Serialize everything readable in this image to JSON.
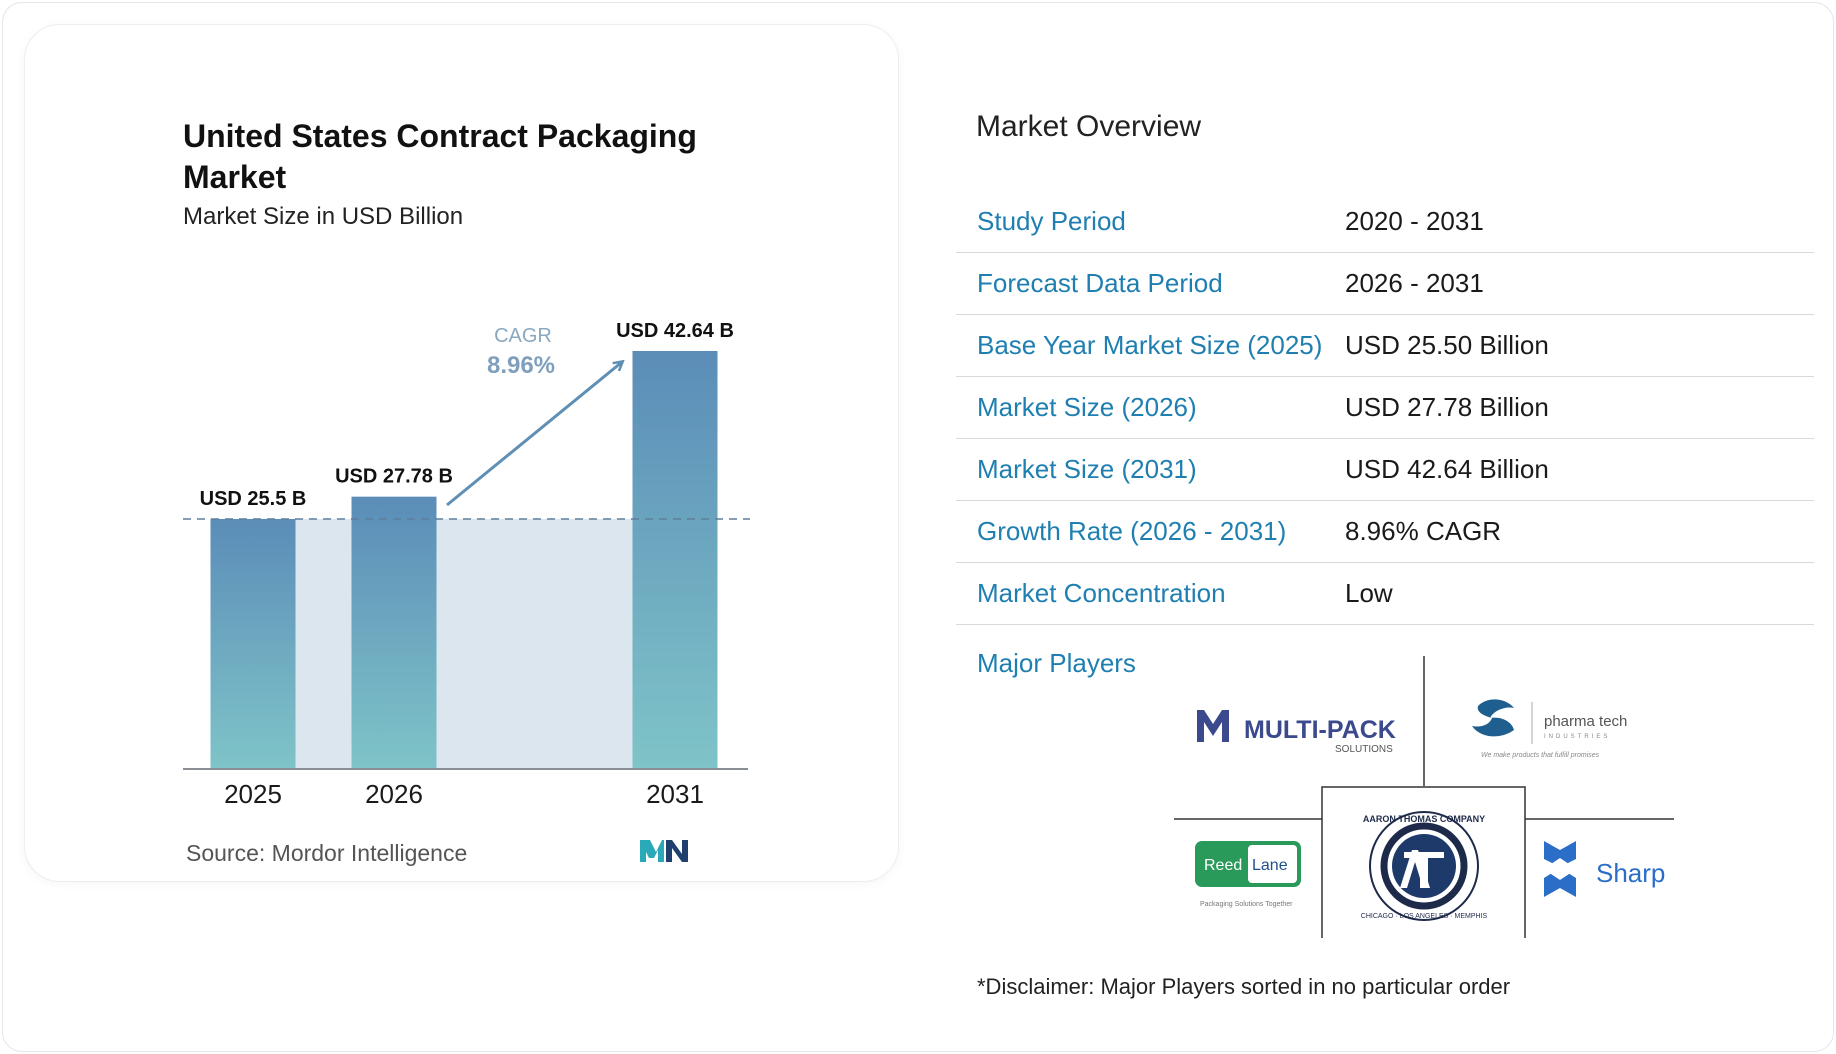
{
  "chart_title": "United States Contract Packaging Market",
  "chart_subtitle": "Market Size in USD Billion",
  "source": "Source:  Mordor Intelligence",
  "colors": {
    "bar_top": "#5b8db8",
    "bar_bottom": "#7fc4c8",
    "accent": "#1f7fb0",
    "band": "#dbe6ef"
  },
  "chart_data": {
    "type": "bar",
    "categories": [
      "2025",
      "2026",
      "2031"
    ],
    "values": [
      25.5,
      27.78,
      42.64
    ],
    "value_labels": [
      "USD 25.5 B",
      "USD 27.78 B",
      "USD 42.64 B"
    ],
    "title": "United States Contract Packaging Market",
    "subtitle": "Market Size in USD Billion",
    "xlabel": "",
    "ylabel": "",
    "ylim": [
      0,
      42.64
    ],
    "grid": false,
    "annotation": {
      "label": "CAGR",
      "value": "8.96%"
    }
  },
  "overview": {
    "title": "Market Overview",
    "rows": [
      {
        "key": "Study Period",
        "value": "2020 - 2031"
      },
      {
        "key": "Forecast Data Period",
        "value": "2026 - 2031"
      },
      {
        "key": "Base Year Market Size (2025)",
        "value": "USD 25.50 Billion"
      },
      {
        "key": "Market Size (2026)",
        "value": "USD 27.78 Billion"
      },
      {
        "key": "Market Size (2031)",
        "value": "USD 42.64 Billion"
      },
      {
        "key": "Growth Rate (2026 - 2031)",
        "value": "8.96% CAGR"
      },
      {
        "key": "Market Concentration",
        "value": "Low"
      }
    ]
  },
  "players": {
    "label": "Major Players",
    "logos": [
      {
        "name": "MULTI-PACK",
        "sub": "SOLUTIONS"
      },
      {
        "name": "pharma tech",
        "sub": "INDUSTRIES",
        "tagline": "We make products that fulfill promises"
      },
      {
        "name": "Reed",
        "name2": "Lane",
        "tagline": "Packaging Solutions Together"
      },
      {
        "name": "AARON THOMAS COMPANY",
        "sub": "CHICAGO · LOS ANGELES · MEMPHIS"
      },
      {
        "name": "Sharp"
      }
    ]
  },
  "disclaimer": "*Disclaimer: Major Players sorted in no particular order"
}
